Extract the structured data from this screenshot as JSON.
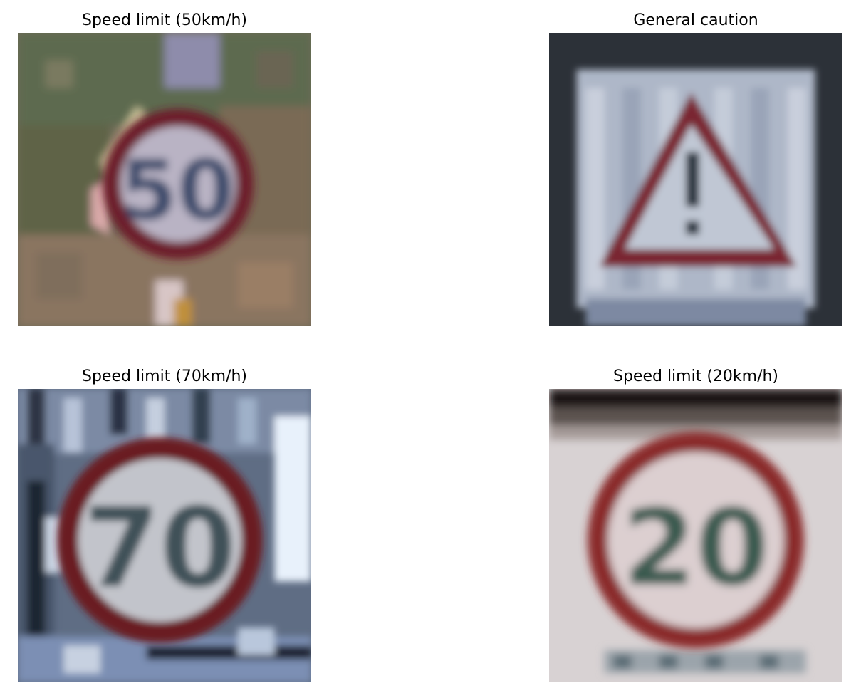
{
  "panels": [
    {
      "title": "Speed limit (50km/h)",
      "sign_text": "50"
    },
    {
      "title": "General caution",
      "sign_text": "!"
    },
    {
      "title": "Speed limit (70km/h)",
      "sign_text": "70"
    },
    {
      "title": "Speed limit (20km/h)",
      "sign_text": "20"
    }
  ]
}
